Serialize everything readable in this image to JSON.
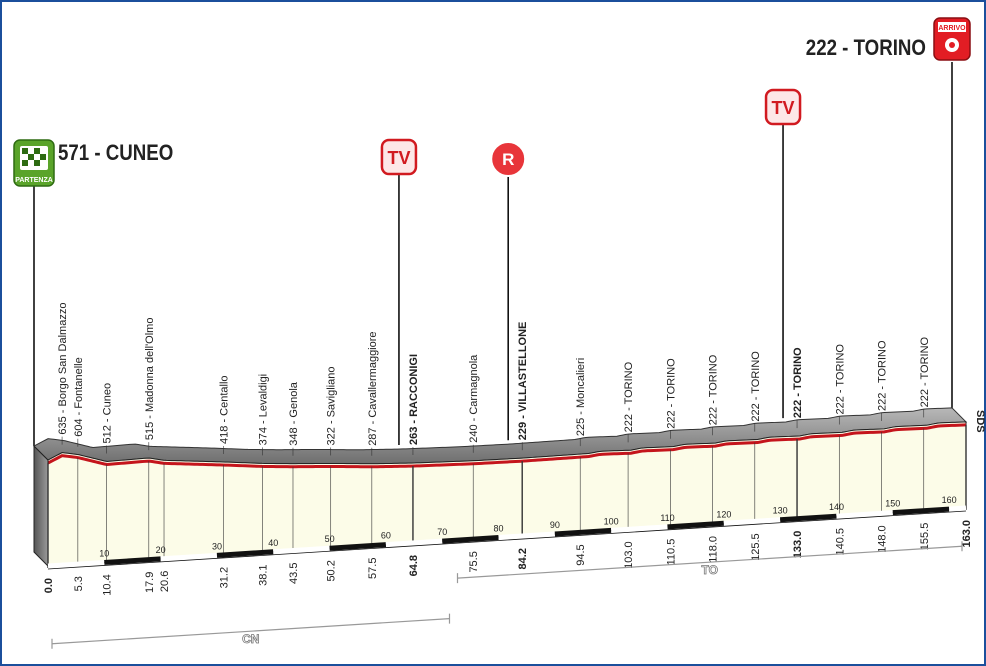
{
  "chart_data": {
    "type": "area",
    "start": {
      "label": "571 - CUNEO",
      "badge": "PARTENZA",
      "km": 0.0
    },
    "finish": {
      "label": "222 - TORINO",
      "badge": "ARRIVO",
      "km": 163.0
    },
    "markers": [
      {
        "type": "tv",
        "text": "TV",
        "km": 64.8
      },
      {
        "type": "red",
        "text": "R",
        "km": 84.2
      },
      {
        "type": "tv",
        "text": "TV",
        "km": 133.0
      }
    ],
    "profile": [
      {
        "km": 0.0,
        "alt": 571
      },
      {
        "km": 2.5,
        "alt": 635
      },
      {
        "km": 5.3,
        "alt": 604
      },
      {
        "km": 10.4,
        "alt": 512
      },
      {
        "km": 17.9,
        "alt": 515
      },
      {
        "km": 20.6,
        "alt": 480
      },
      {
        "km": 31.2,
        "alt": 418
      },
      {
        "km": 38.1,
        "alt": 374
      },
      {
        "km": 43.5,
        "alt": 348
      },
      {
        "km": 50.2,
        "alt": 322
      },
      {
        "km": 57.5,
        "alt": 287
      },
      {
        "km": 64.8,
        "alt": 263
      },
      {
        "km": 75.5,
        "alt": 240
      },
      {
        "km": 84.2,
        "alt": 229
      },
      {
        "km": 94.5,
        "alt": 225
      },
      {
        "km": 103.0,
        "alt": 222
      },
      {
        "km": 110.5,
        "alt": 222
      },
      {
        "km": 118.0,
        "alt": 222
      },
      {
        "km": 125.5,
        "alt": 222
      },
      {
        "km": 133.0,
        "alt": 222
      },
      {
        "km": 140.5,
        "alt": 222
      },
      {
        "km": 148.0,
        "alt": 222
      },
      {
        "km": 155.5,
        "alt": 222
      },
      {
        "km": 163.0,
        "alt": 222
      }
    ],
    "places": [
      {
        "km": 2.5,
        "text": "635 - Borgo San Dalmazzo",
        "bold": false
      },
      {
        "km": 5.3,
        "text": "604 - Fontanelle",
        "bold": false
      },
      {
        "km": 10.4,
        "text": "512 - Cuneo",
        "bold": false
      },
      {
        "km": 17.9,
        "text": "515 - Madonna dell'Olmo",
        "bold": false
      },
      {
        "km": 31.2,
        "text": "418 - Centallo",
        "bold": false
      },
      {
        "km": 38.1,
        "text": "374 - Levaldigi",
        "bold": false
      },
      {
        "km": 43.5,
        "text": "348 - Genola",
        "bold": false
      },
      {
        "km": 50.2,
        "text": "322 - Savigliano",
        "bold": false
      },
      {
        "km": 57.5,
        "text": "287 - Cavallermaggiore",
        "bold": false
      },
      {
        "km": 64.8,
        "text": "263 - RACCONIGI",
        "bold": true
      },
      {
        "km": 75.5,
        "text": "240 - Carmagnola",
        "bold": false
      },
      {
        "km": 84.2,
        "text": "229 - VILLASTELLONE",
        "bold": true
      },
      {
        "km": 94.5,
        "text": "225 - Moncalieri",
        "bold": false
      },
      {
        "km": 103.0,
        "text": "222 - TORINO",
        "bold": false
      },
      {
        "km": 110.5,
        "text": "222 - TORINO",
        "bold": false
      },
      {
        "km": 118.0,
        "text": "222 - TORINO",
        "bold": false
      },
      {
        "km": 125.5,
        "text": "222 - TORINO",
        "bold": false
      },
      {
        "km": 133.0,
        "text": "222 - TORINO",
        "bold": true
      },
      {
        "km": 140.5,
        "text": "222 - TORINO",
        "bold": false
      },
      {
        "km": 148.0,
        "text": "222 - TORINO",
        "bold": false
      },
      {
        "km": 155.5,
        "text": "222 - TORINO",
        "bold": false
      }
    ],
    "distances": [
      {
        "km": 0.0,
        "text": "0.0",
        "bold": true
      },
      {
        "km": 5.3,
        "text": "5.3",
        "bold": false
      },
      {
        "km": 10.4,
        "text": "10.4",
        "bold": false
      },
      {
        "km": 17.9,
        "text": "17.9",
        "bold": false
      },
      {
        "km": 20.6,
        "text": "20.6",
        "bold": false
      },
      {
        "km": 31.2,
        "text": "31.2",
        "bold": false
      },
      {
        "km": 38.1,
        "text": "38.1",
        "bold": false
      },
      {
        "km": 43.5,
        "text": "43.5",
        "bold": false
      },
      {
        "km": 50.2,
        "text": "50.2",
        "bold": false
      },
      {
        "km": 57.5,
        "text": "57.5",
        "bold": false
      },
      {
        "km": 64.8,
        "text": "64.8",
        "bold": true
      },
      {
        "km": 75.5,
        "text": "75.5",
        "bold": false
      },
      {
        "km": 84.2,
        "text": "84.2",
        "bold": true
      },
      {
        "km": 94.5,
        "text": "94.5",
        "bold": false
      },
      {
        "km": 103.0,
        "text": "103.0",
        "bold": false
      },
      {
        "km": 110.5,
        "text": "110.5",
        "bold": false
      },
      {
        "km": 118.0,
        "text": "118.0",
        "bold": false
      },
      {
        "km": 125.5,
        "text": "125.5",
        "bold": false
      },
      {
        "km": 133.0,
        "text": "133.0",
        "bold": true
      },
      {
        "km": 140.5,
        "text": "140.5",
        "bold": false
      },
      {
        "km": 148.0,
        "text": "148.0",
        "bold": false
      },
      {
        "km": 155.5,
        "text": "155.5",
        "bold": false
      },
      {
        "km": 163.0,
        "text": "163.0",
        "bold": true
      }
    ],
    "km_ticks": [
      {
        "km": 10,
        "text": "10"
      },
      {
        "km": 20,
        "text": "20"
      },
      {
        "km": 30,
        "text": "30"
      },
      {
        "km": 40,
        "text": "40"
      },
      {
        "km": 50,
        "text": "50"
      },
      {
        "km": 60,
        "text": "60"
      },
      {
        "km": 70,
        "text": "70"
      },
      {
        "km": 80,
        "text": "80"
      },
      {
        "km": 90,
        "text": "90"
      },
      {
        "km": 100,
        "text": "100"
      },
      {
        "km": 110,
        "text": "110"
      },
      {
        "km": 120,
        "text": "120"
      },
      {
        "km": 130,
        "text": "130"
      },
      {
        "km": 140,
        "text": "140"
      },
      {
        "km": 150,
        "text": "150"
      },
      {
        "km": 160,
        "text": "160"
      }
    ],
    "provinces": [
      {
        "text": "CN",
        "from_km": 0.0,
        "to_km": 72.0,
        "row": 2
      },
      {
        "text": "TO",
        "from_km": 72.0,
        "to_km": 163.0,
        "row": 1
      }
    ],
    "side_label": "SDS"
  }
}
